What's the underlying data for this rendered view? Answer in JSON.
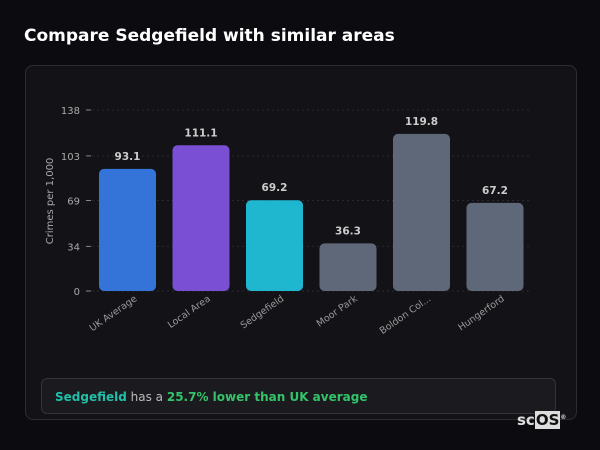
{
  "header": {
    "title": "Compare Sedgefield with similar areas"
  },
  "chart_data": {
    "type": "bar",
    "categories": [
      "UK Average",
      "Local Area",
      "Sedgefield",
      "Moor Park",
      "Boldon Col...",
      "Hungerford"
    ],
    "values": [
      93.1,
      111.1,
      69.2,
      36.3,
      119.8,
      67.2
    ],
    "value_labels": [
      "93.1",
      "111.1",
      "69.2",
      "36.3",
      "119.8",
      "67.2"
    ],
    "colors": [
      "#3474d8",
      "#7a4fd4",
      "#1fb6cf",
      "#5f6878",
      "#5f6878",
      "#5f6878"
    ],
    "ylabel": "Crimes per 1,000",
    "yticks": [
      0,
      34,
      69,
      103,
      138
    ],
    "ylim": [
      0,
      138
    ],
    "grid": true
  },
  "summary": {
    "area": "Sedgefield",
    "middle": " has a ",
    "comparison": "25.7% lower than UK average"
  },
  "logo": {
    "text_a": "sc",
    "text_b": "OS",
    "mark": "®"
  }
}
